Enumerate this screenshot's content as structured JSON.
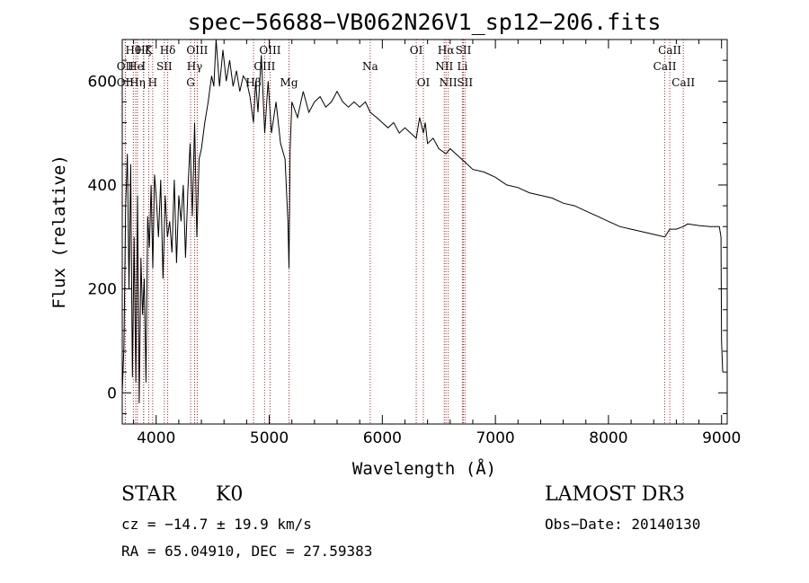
{
  "chart_data": {
    "type": "line",
    "title": "spec−56688−VB062N26V1_sp12−206.fits",
    "xlabel": "Wavelength (Å)",
    "ylabel": "Flux (relative)",
    "xlim": [
      3700,
      9050
    ],
    "ylim": [
      -60,
      680
    ],
    "xticks": [
      4000,
      5000,
      6000,
      7000,
      8000,
      9000
    ],
    "yticks": [
      0,
      200,
      400,
      600
    ],
    "grid": false,
    "line_color": "#000000",
    "marker_color": "#b22222",
    "series": [
      {
        "name": "flux",
        "x": [
          3700,
          3715,
          3730,
          3745,
          3760,
          3775,
          3790,
          3805,
          3820,
          3835,
          3850,
          3865,
          3880,
          3895,
          3910,
          3925,
          3940,
          3955,
          3970,
          3985,
          4000,
          4020,
          4040,
          4060,
          4080,
          4100,
          4120,
          4140,
          4160,
          4180,
          4200,
          4220,
          4240,
          4260,
          4280,
          4300,
          4320,
          4340,
          4360,
          4380,
          4400,
          4430,
          4460,
          4490,
          4510,
          4530,
          4560,
          4590,
          4620,
          4650,
          4680,
          4710,
          4740,
          4770,
          4800,
          4830,
          4861,
          4880,
          4900,
          4930,
          4960,
          4990,
          5020,
          5060,
          5100,
          5140,
          5165,
          5175,
          5185,
          5200,
          5250,
          5300,
          5350,
          5400,
          5450,
          5500,
          5550,
          5600,
          5650,
          5700,
          5750,
          5800,
          5850,
          5893,
          5950,
          6000,
          6050,
          6100,
          6150,
          6200,
          6250,
          6300,
          6330,
          6363,
          6380,
          6400,
          6450,
          6500,
          6563,
          6600,
          6650,
          6700,
          6750,
          6800,
          6900,
          7000,
          7100,
          7200,
          7300,
          7400,
          7500,
          7600,
          7700,
          7800,
          7900,
          8000,
          8100,
          8200,
          8300,
          8400,
          8498,
          8542,
          8600,
          8662,
          8700,
          8800,
          8900,
          8980,
          8995,
          9000,
          9010
        ],
        "y": [
          0,
          90,
          360,
          460,
          200,
          440,
          30,
          300,
          20,
          380,
          -20,
          260,
          150,
          220,
          20,
          340,
          280,
          400,
          240,
          420,
          380,
          300,
          410,
          220,
          380,
          300,
          330,
          270,
          410,
          250,
          380,
          330,
          400,
          260,
          390,
          480,
          340,
          520,
          300,
          450,
          470,
          520,
          560,
          610,
          590,
          680,
          590,
          660,
          600,
          640,
          590,
          620,
          580,
          610,
          600,
          570,
          520,
          600,
          540,
          650,
          500,
          600,
          500,
          560,
          480,
          450,
          330,
          240,
          470,
          560,
          530,
          580,
          540,
          560,
          570,
          550,
          560,
          580,
          560,
          550,
          560,
          550,
          560,
          540,
          530,
          520,
          510,
          520,
          500,
          510,
          500,
          490,
          530,
          500,
          520,
          480,
          490,
          470,
          460,
          470,
          460,
          450,
          440,
          430,
          425,
          415,
          400,
          395,
          385,
          380,
          375,
          365,
          360,
          350,
          340,
          330,
          320,
          315,
          310,
          305,
          300,
          315,
          315,
          320,
          325,
          322,
          320,
          320,
          300,
          100,
          40
        ]
      }
    ],
    "lines": [
      {
        "label": "Hθ",
        "x": 3798,
        "row": 1,
        "dy": 0
      },
      {
        "label": "OII",
        "x": 3727,
        "row": 2,
        "dy": 0
      },
      {
        "label": "OII",
        "x": 3727,
        "row": 3,
        "dy": 0
      },
      {
        "label": "He",
        "x": 3819,
        "row": 2,
        "dy": 0
      },
      {
        "label": "Hη",
        "x": 3835,
        "row": 3,
        "dy": 0
      },
      {
        "label": "K",
        "x": 3934,
        "row": 1,
        "dy": 0
      },
      {
        "label": "Hζ",
        "x": 3889,
        "row": 1,
        "dy": 0
      },
      {
        "label": "I",
        "x": 3889,
        "row": 2,
        "dy": 0
      },
      {
        "label": "H",
        "x": 3969,
        "row": 3,
        "dy": 0
      },
      {
        "label": "SII",
        "x": 4072,
        "row": 2,
        "dy": 0
      },
      {
        "label": "Hδ",
        "x": 4102,
        "row": 1,
        "dy": 0
      },
      {
        "label": "OIII",
        "x": 4363,
        "row": 1,
        "dy": 0
      },
      {
        "label": "Hγ",
        "x": 4340,
        "row": 2,
        "dy": 0
      },
      {
        "label": "G",
        "x": 4305,
        "row": 3,
        "dy": 0
      },
      {
        "label": "Hβ",
        "x": 4861,
        "row": 3,
        "dy": 0
      },
      {
        "label": "OIII",
        "x": 5007,
        "row": 1,
        "dy": 0
      },
      {
        "label": "OIII",
        "x": 4959,
        "row": 2,
        "dy": 0
      },
      {
        "label": "Mg",
        "x": 5175,
        "row": 3,
        "dy": 0
      },
      {
        "label": "Na",
        "x": 5893,
        "row": 2,
        "dy": 0
      },
      {
        "label": "OI",
        "x": 6300,
        "row": 1,
        "dy": 0
      },
      {
        "label": "OI",
        "x": 6363,
        "row": 3,
        "dy": 0
      },
      {
        "label": "Hα",
        "x": 6563,
        "row": 1,
        "dy": 0
      },
      {
        "label": "NII",
        "x": 6548,
        "row": 2,
        "dy": 0
      },
      {
        "label": "NII",
        "x": 6583,
        "row": 3,
        "dy": 0
      },
      {
        "label": "SII",
        "x": 6717,
        "row": 1,
        "dy": 0
      },
      {
        "label": "Li",
        "x": 6708,
        "row": 2,
        "dy": 0
      },
      {
        "label": "SII",
        "x": 6731,
        "row": 3,
        "dy": 0
      },
      {
        "label": "CaII",
        "x": 8542,
        "row": 1,
        "dy": 0
      },
      {
        "label": "CaII",
        "x": 8498,
        "row": 2,
        "dy": 0
      },
      {
        "label": "CaII",
        "x": 8662,
        "row": 3,
        "dy": 0
      }
    ]
  },
  "info": {
    "class_label": "STAR",
    "subclass_label": "K0",
    "survey": "LAMOST DR3",
    "redshift": "cz = −14.7 ± 19.9 km/s",
    "obs_date": "Obs−Date: 20140130",
    "coords": "RA =  65.04910, DEC =  27.59383"
  }
}
